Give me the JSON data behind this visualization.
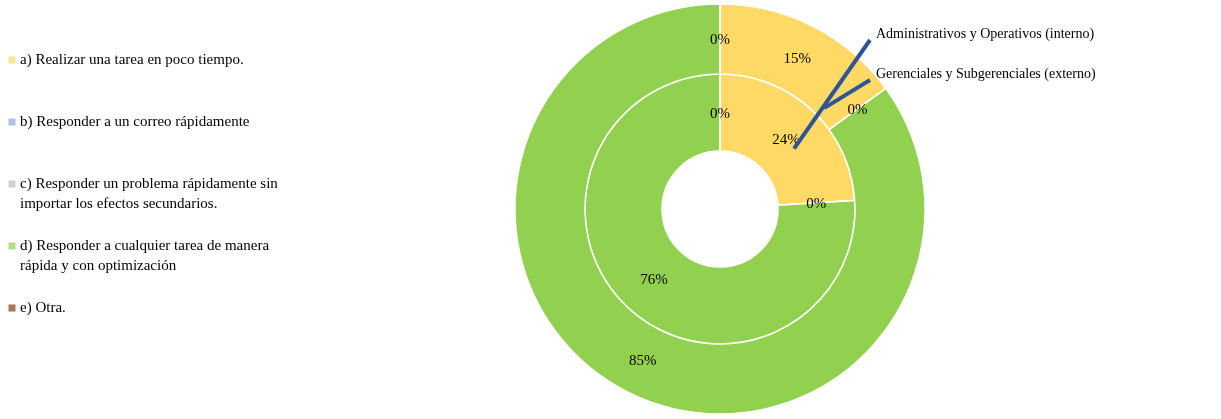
{
  "chart_data": {
    "type": "donut",
    "categories": [
      "a) Realizar una tarea en poco tiempo.",
      "b) Responder a un correo rápidamente",
      "c) Responder un problema rápidamente sin importar los efectos secundarios.",
      "d) Responder a cualquier tarea de manera rápida y con optimización",
      "e) Otra."
    ],
    "colors": [
      "#ffd966",
      "#8faadc",
      "#bfbfbf",
      "#92d050",
      "#843c0c"
    ],
    "series": [
      {
        "name": "Administrativos y Operativos (interno)",
        "values": [
          24,
          0,
          0,
          76,
          0
        ],
        "value_labels": [
          "24%",
          "0%",
          null,
          "76%",
          "0%"
        ]
      },
      {
        "name": "Gerenciales y Subgerenciales (externo)",
        "values": [
          15,
          0,
          0,
          85,
          0
        ],
        "value_labels": [
          "15%",
          "0%",
          null,
          "85%",
          "0%"
        ]
      }
    ],
    "legend": "left"
  }
}
